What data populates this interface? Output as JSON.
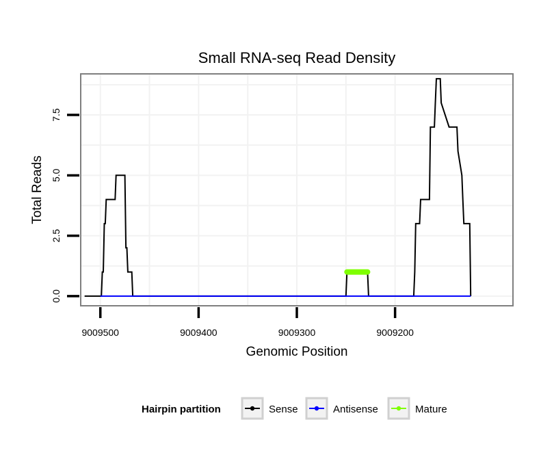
{
  "chart_data": {
    "type": "line",
    "title": "Small RNA-seq Read Density",
    "xlabel": "Genomic Position",
    "ylabel": "Total Reads",
    "x_reversed": true,
    "xlim": [
      9009520,
      9009080
    ],
    "ylim": [
      -0.4,
      9.2
    ],
    "xticks": [
      9009500,
      9009400,
      9009300,
      9009200
    ],
    "xtick_labels": [
      "9009500",
      "9009400",
      "9009300",
      "9009200"
    ],
    "yticks": [
      0,
      2.5,
      5,
      7.5
    ],
    "ytick_labels": [
      "0.0",
      "2.5",
      "5.0",
      "7.5"
    ],
    "grid": true,
    "legend": {
      "title": "Hairpin partition",
      "position": "bottom",
      "entries": [
        {
          "label": "Sense",
          "color": "#000000"
        },
        {
          "label": "Antisense",
          "color": "#0000ff"
        },
        {
          "label": "Mature",
          "color": "#7fff00"
        }
      ]
    },
    "series": [
      {
        "name": "Sense",
        "color": "#000000",
        "x": [
          9009516,
          9009500,
          9009499,
          9009498,
          9009497,
          9009496,
          9009495,
          9009494,
          9009485,
          9009484,
          9009475,
          9009474,
          9009473,
          9009472,
          9009468,
          9009467,
          9009250,
          9009249,
          9009228,
          9009227,
          9009182,
          9009181,
          9009180,
          9009179,
          9009175,
          9009174,
          9009165,
          9009164,
          9009160,
          9009159,
          9009158,
          9009157,
          9009154,
          9009153,
          9009145,
          9009144,
          9009137,
          9009136,
          9009132,
          9009131,
          9009130,
          9009129,
          9009124,
          9009123
        ],
        "y": [
          0,
          0,
          0,
          1,
          1,
          3,
          3,
          4,
          4,
          5,
          5,
          2,
          2,
          1,
          1,
          0,
          0,
          1,
          1,
          0,
          0,
          0,
          1,
          3,
          3,
          4,
          4,
          7,
          7,
          8,
          9,
          9,
          9,
          8,
          7,
          7,
          7,
          6,
          5,
          4,
          3,
          3,
          3,
          0
        ]
      },
      {
        "name": "Antisense",
        "color": "#0000ff",
        "x": [
          9009500,
          9009467,
          9009250,
          9009227,
          9009181,
          9009123
        ],
        "y": [
          0,
          0,
          0,
          0,
          0,
          0
        ]
      },
      {
        "name": "Mature",
        "color": "#7fff00",
        "x": [
          9009249,
          9009228
        ],
        "y": [
          1,
          1
        ]
      }
    ]
  }
}
